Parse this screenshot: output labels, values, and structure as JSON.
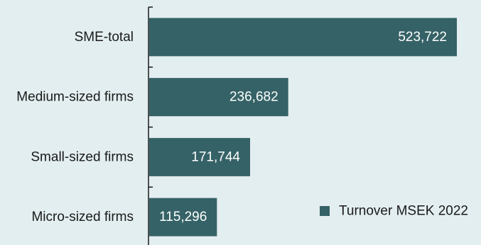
{
  "chart_data": {
    "type": "bar",
    "orientation": "horizontal",
    "categories": [
      "SME-total",
      "Medium-sized firms",
      "Small-sized firms",
      "Micro-sized firms"
    ],
    "series": [
      {
        "name": "Turnover MSEK 2022",
        "values": [
          523722,
          236682,
          171744,
          115296
        ],
        "value_labels": [
          "523,722",
          "236,682",
          "171,744",
          "115,296"
        ],
        "color": "#356266"
      }
    ],
    "xlim": [
      0,
      530000
    ],
    "grid": false,
    "legend_position": "bottom-right"
  },
  "colors": {
    "background": "#e3eef0",
    "bar": "#356266",
    "axis": "#1a1a1a",
    "value_text": "#ffffff",
    "text": "#1a1a1a"
  }
}
